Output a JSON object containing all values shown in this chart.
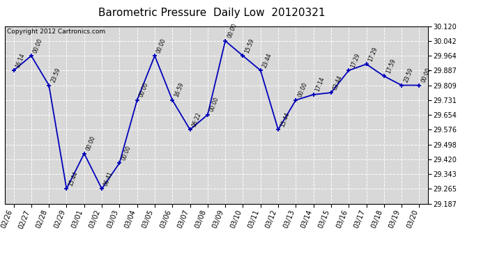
{
  "title": "Barometric Pressure  Daily Low  20120321",
  "copyright": "Copyright 2012 Cartronics.com",
  "x_labels": [
    "02/26",
    "02/27",
    "02/28",
    "02/29",
    "03/01",
    "03/02",
    "03/03",
    "03/04",
    "03/05",
    "03/06",
    "03/07",
    "03/08",
    "03/09",
    "03/10",
    "03/11",
    "03/12",
    "03/13",
    "03/14",
    "03/15",
    "03/16",
    "03/17",
    "03/18",
    "03/19",
    "03/20"
  ],
  "y_values": [
    29.887,
    29.964,
    29.809,
    29.265,
    29.45,
    29.265,
    29.4,
    29.731,
    29.964,
    29.731,
    29.576,
    29.654,
    30.042,
    29.964,
    29.887,
    29.576,
    29.731,
    29.76,
    29.77,
    29.887,
    29.92,
    29.857,
    29.809,
    29.809
  ],
  "point_labels": [
    "16:14",
    "00:00",
    "23:59",
    "15:44",
    "00:00",
    "06:41",
    "00:00",
    "00:00",
    "00:00",
    "16:59",
    "06:22",
    "00:00",
    "00:00",
    "15:59",
    "23:44",
    "15:44",
    "00:00",
    "17:14",
    "03:44",
    "17:29",
    "17:29",
    "17:59",
    "23:59",
    "00:00"
  ],
  "line_color": "#0000bb",
  "marker_color": "#0000bb",
  "background_color": "#ffffff",
  "plot_bg_color": "#d8d8d8",
  "grid_color": "#ffffff",
  "ylim_min": 29.187,
  "ylim_max": 30.12,
  "yticks": [
    29.187,
    29.265,
    29.343,
    29.42,
    29.498,
    29.576,
    29.654,
    29.731,
    29.809,
    29.887,
    29.964,
    30.042,
    30.12
  ],
  "title_fontsize": 11,
  "copyright_fontsize": 6.5,
  "label_fontsize": 5.5,
  "tick_fontsize": 7,
  "ytick_fontsize": 7
}
